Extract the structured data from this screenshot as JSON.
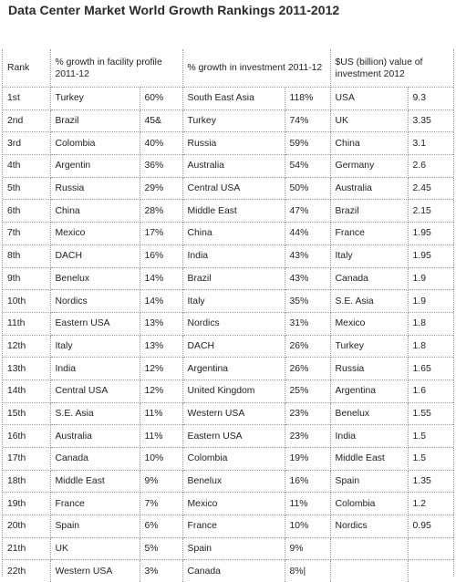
{
  "title": "Data Center Market World Growth Rankings 2011-2012",
  "headers": {
    "rank": "Rank",
    "facility": "% growth in facility profile 2011-12",
    "investment": "% growth in investment 2011-12",
    "value": "$US (billion) value of investment 2012"
  },
  "rows": [
    {
      "rank": "1st",
      "facility_region": "Turkey",
      "facility_pct": "60%",
      "investment_region": "South East Asia",
      "investment_pct": "118%",
      "value_region": "USA",
      "value": "9.3"
    },
    {
      "rank": "2nd",
      "facility_region": "Brazil",
      "facility_pct": "45&",
      "investment_region": "Turkey",
      "investment_pct": "74%",
      "value_region": "UK",
      "value": "3.35"
    },
    {
      "rank": "3rd",
      "facility_region": "Colombia",
      "facility_pct": "40%",
      "investment_region": "Russia",
      "investment_pct": "59%",
      "value_region": "China",
      "value": "3.1"
    },
    {
      "rank": "4th",
      "facility_region": "Argentin",
      "facility_pct": "36%",
      "investment_region": "Australia",
      "investment_pct": "54%",
      "value_region": "Germany",
      "value": "2.6"
    },
    {
      "rank": "5th",
      "facility_region": "Russia",
      "facility_pct": "29%",
      "investment_region": "Central USA",
      "investment_pct": "50%",
      "value_region": "Australia",
      "value": "2.45"
    },
    {
      "rank": "6th",
      "facility_region": "China",
      "facility_pct": "28%",
      "investment_region": "Middle East",
      "investment_pct": "47%",
      "value_region": "Brazil",
      "value": "2.15"
    },
    {
      "rank": "7th",
      "facility_region": "Mexico",
      "facility_pct": "17%",
      "investment_region": "China",
      "investment_pct": "44%",
      "value_region": "France",
      "value": "1.95"
    },
    {
      "rank": "8th",
      "facility_region": "DACH",
      "facility_pct": "16%",
      "investment_region": "India",
      "investment_pct": "43%",
      "value_region": "Italy",
      "value": "1.95"
    },
    {
      "rank": "9th",
      "facility_region": "Benelux",
      "facility_pct": "14%",
      "investment_region": "Brazil",
      "investment_pct": "43%",
      "value_region": "Canada",
      "value": "1.9"
    },
    {
      "rank": "10th",
      "facility_region": "Nordics",
      "facility_pct": "14%",
      "investment_region": "Italy",
      "investment_pct": "35%",
      "value_region": "S.E. Asia",
      "value": "1.9"
    },
    {
      "rank": "11th",
      "facility_region": "Eastern USA",
      "facility_pct": "13%",
      "investment_region": "Nordics",
      "investment_pct": "31%",
      "value_region": "Mexico",
      "value": "1.8"
    },
    {
      "rank": "12th",
      "facility_region": "Italy",
      "facility_pct": "13%",
      "investment_region": "DACH",
      "investment_pct": "26%",
      "value_region": "Turkey",
      "value": "1.8"
    },
    {
      "rank": "13th",
      "facility_region": "India",
      "facility_pct": "12%",
      "investment_region": "Argentina",
      "investment_pct": "26%",
      "value_region": "Russia",
      "value": "1.65"
    },
    {
      "rank": "14th",
      "facility_region": "Central USA",
      "facility_pct": "12%",
      "investment_region": "United Kingdom",
      "investment_pct": "25%",
      "value_region": "Argentina",
      "value": "1.6"
    },
    {
      "rank": "15th",
      "facility_region": "S.E. Asia",
      "facility_pct": "11%",
      "investment_region": "Western USA",
      "investment_pct": "23%",
      "value_region": "Benelux",
      "value": "1.55"
    },
    {
      "rank": "16th",
      "facility_region": "Australia",
      "facility_pct": "11%",
      "investment_region": "Eastern USA",
      "investment_pct": "23%",
      "value_region": "India",
      "value": "1.5"
    },
    {
      "rank": "17th",
      "facility_region": "Canada",
      "facility_pct": "10%",
      "investment_region": "Colombia",
      "investment_pct": "19%",
      "value_region": "Middle East",
      "value": "1.5"
    },
    {
      "rank": "18th",
      "facility_region": "Middle East",
      "facility_pct": "9%",
      "investment_region": "Benelux",
      "investment_pct": "16%",
      "value_region": "Spain",
      "value": "1.35"
    },
    {
      "rank": "19th",
      "facility_region": "France",
      "facility_pct": "7%",
      "investment_region": "Mexico",
      "investment_pct": "11%",
      "value_region": "Colombia",
      "value": "1.2"
    },
    {
      "rank": "20th",
      "facility_region": "Spain",
      "facility_pct": "6%",
      "investment_region": "France",
      "investment_pct": "10%",
      "value_region": "Nordics",
      "value": "0.95"
    },
    {
      "rank": "21th",
      "facility_region": "UK",
      "facility_pct": "5%",
      "investment_region": "Spain",
      "investment_pct": "9%",
      "value_region": "",
      "value": ""
    },
    {
      "rank": "22th",
      "facility_region": "Western USA",
      "facility_pct": "3%",
      "investment_region": "Canada",
      "investment_pct": "8%|",
      "value_region": "",
      "value": ""
    }
  ]
}
